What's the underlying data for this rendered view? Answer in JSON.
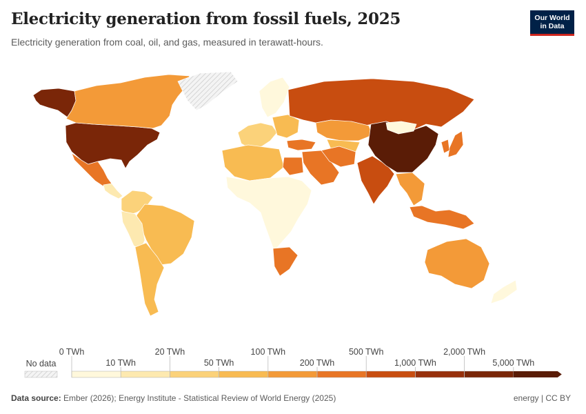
{
  "title": "Electricity generation from fossil fuels, 2025",
  "subtitle": "Electricity generation from coal, oil, and gas, measured in terawatt-hours.",
  "logo": {
    "line1": "Our World",
    "line2": "in Data"
  },
  "legend": {
    "no_data": "No data",
    "bins": [
      {
        "label": "0 TWh",
        "color": "#fff8dc"
      },
      {
        "label": "10 TWh",
        "color": "#fde9b0"
      },
      {
        "label": "20 TWh",
        "color": "#fbd27a"
      },
      {
        "label": "50 TWh",
        "color": "#f8bb52"
      },
      {
        "label": "100 TWh",
        "color": "#f39a38"
      },
      {
        "label": "200 TWh",
        "color": "#e87525"
      },
      {
        "label": "500 TWh",
        "color": "#c84d10"
      },
      {
        "label": "1,000 TWh",
        "color": "#97300b"
      },
      {
        "label": "2,000 TWh",
        "color": "#7a2608"
      },
      {
        "label": "5,000 TWh",
        "color": ""
      }
    ],
    "last_color": "#5a1c06"
  },
  "footer": {
    "source_label": "Data source:",
    "source_text": "Ember (2026); Energy Institute - Statistical Review of World Energy (2025)",
    "right": "energy | CC BY"
  },
  "map_regions": [
    {
      "name": "united-states",
      "color": "#7a2608"
    },
    {
      "name": "alaska",
      "color": "#7a2608"
    },
    {
      "name": "canada",
      "color": "#f39a38"
    },
    {
      "name": "mexico",
      "color": "#e87525"
    },
    {
      "name": "greenland",
      "color": "nodata"
    },
    {
      "name": "central-america",
      "color": "#fde9b0"
    },
    {
      "name": "colombia-venezuela",
      "color": "#fbd27a"
    },
    {
      "name": "brazil",
      "color": "#f8bb52"
    },
    {
      "name": "peru-bolivia",
      "color": "#fde9b0"
    },
    {
      "name": "argentina-chile",
      "color": "#f8bb52"
    },
    {
      "name": "western-europe",
      "color": "#fbd27a"
    },
    {
      "name": "scandinavia",
      "color": "#fff8dc"
    },
    {
      "name": "eastern-europe",
      "color": "#f8bb52"
    },
    {
      "name": "turkey",
      "color": "#e87525"
    },
    {
      "name": "russia",
      "color": "#c84d10"
    },
    {
      "name": "kazakhstan",
      "color": "#f39a38"
    },
    {
      "name": "central-asia",
      "color": "#f8bb52"
    },
    {
      "name": "middle-east",
      "color": "#e87525"
    },
    {
      "name": "iran",
      "color": "#e87525"
    },
    {
      "name": "north-africa",
      "color": "#f8bb52"
    },
    {
      "name": "egypt",
      "color": "#e87525"
    },
    {
      "name": "sub-saharan-africa",
      "color": "#fff8dc"
    },
    {
      "name": "south-africa",
      "color": "#e87525"
    },
    {
      "name": "india",
      "color": "#c84d10"
    },
    {
      "name": "china",
      "color": "#5a1c06"
    },
    {
      "name": "mongolia",
      "color": "#fff8dc"
    },
    {
      "name": "japan",
      "color": "#e87525"
    },
    {
      "name": "korea",
      "color": "#e87525"
    },
    {
      "name": "southeast-asia",
      "color": "#f39a38"
    },
    {
      "name": "indonesia",
      "color": "#e87525"
    },
    {
      "name": "australia",
      "color": "#f39a38"
    },
    {
      "name": "new-zealand",
      "color": "#fff8dc"
    }
  ]
}
